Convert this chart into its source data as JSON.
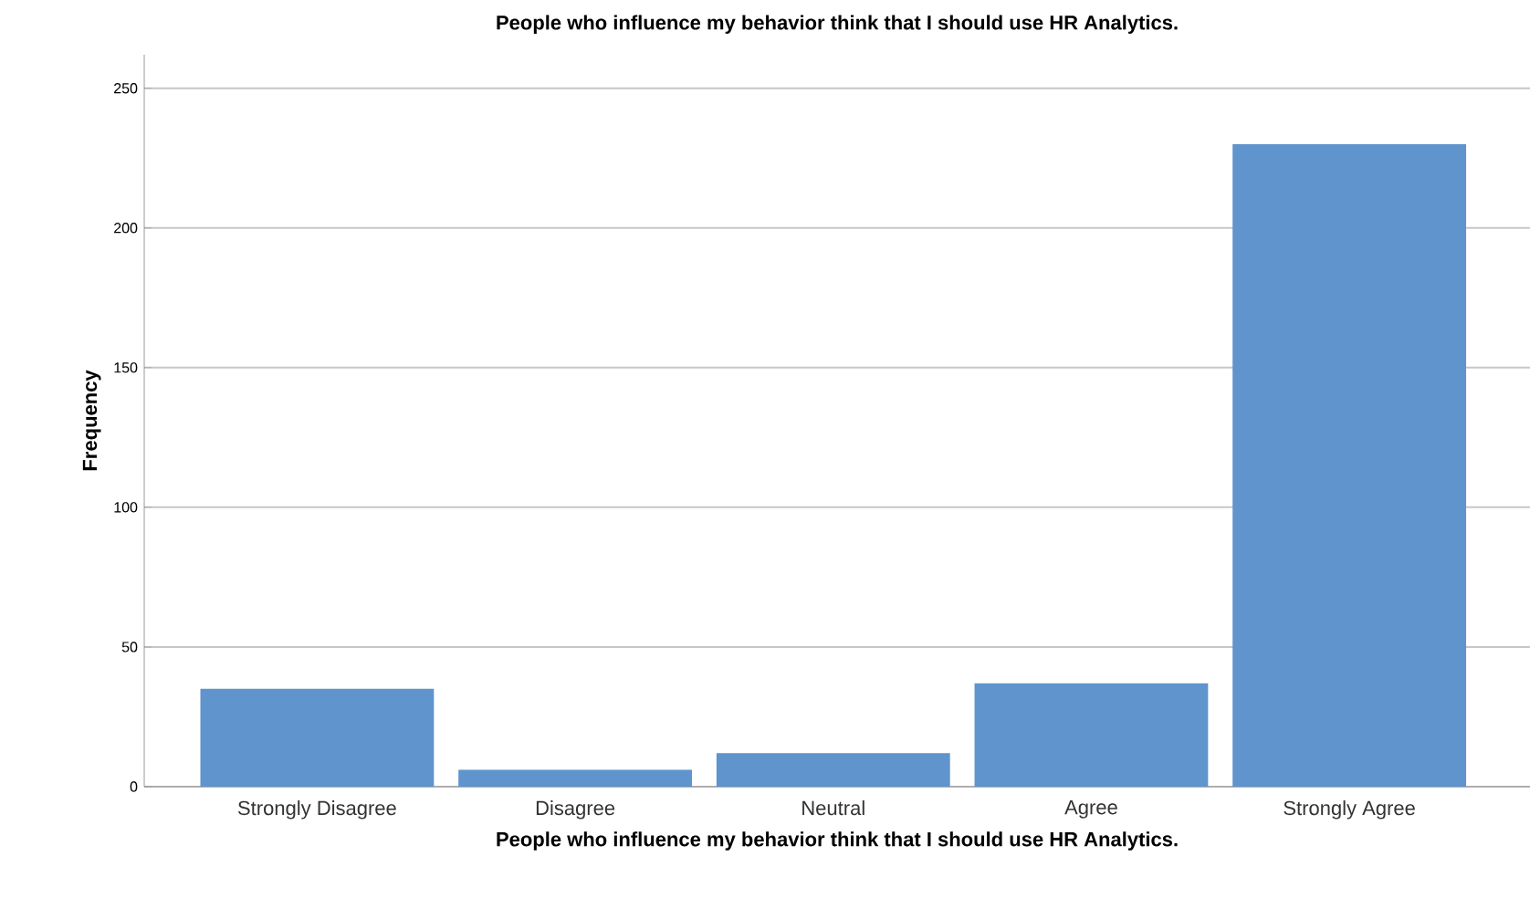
{
  "chart_data": {
    "type": "bar",
    "title": "People who influence my behavior think that I should use HR Analytics.",
    "xlabel": "People who influence my behavior think that I should use HR Analytics.",
    "ylabel": "Frequency",
    "categories": [
      "Strongly Disagree",
      "Disagree",
      "Neutral",
      "Agree",
      "Strongly Agree"
    ],
    "values": [
      35,
      6,
      12,
      37,
      230
    ],
    "color": "#5f94cd",
    "ylim": [
      0,
      262
    ],
    "yticks": [
      0,
      50,
      100,
      150,
      200,
      250
    ],
    "grid": "y"
  }
}
